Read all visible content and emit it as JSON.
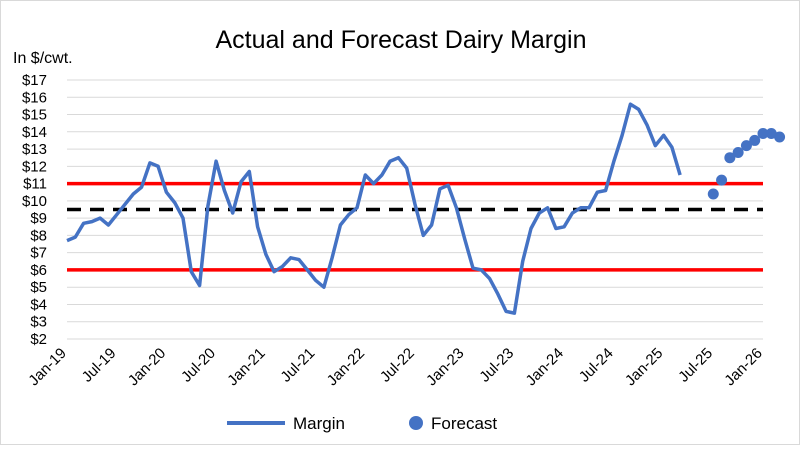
{
  "chart_data": {
    "type": "line",
    "title": "Actual and Forecast Dairy Margin",
    "ylabel": "In $/cwt.",
    "ylim": [
      2,
      17
    ],
    "y_ticks": [
      "$2",
      "$3",
      "$4",
      "$5",
      "$6",
      "$7",
      "$8",
      "$9",
      "$10",
      "$11",
      "$12",
      "$13",
      "$14",
      "$15",
      "$16",
      "$17"
    ],
    "x_ticks": [
      "Jan-19",
      "Jul-19",
      "Jan-20",
      "Jul-20",
      "Jan-21",
      "Jul-21",
      "Jan-22",
      "Jul-22",
      "Jan-23",
      "Jul-23",
      "Jan-24",
      "Jul-24",
      "Jan-25",
      "Jul-25",
      "Jan-26"
    ],
    "grid": "horizontal",
    "legend_position": "bottom",
    "reference_lines": [
      {
        "value": 11.0,
        "color": "#ff0000",
        "style": "solid"
      },
      {
        "value": 9.5,
        "color": "#000000",
        "style": "dashed"
      },
      {
        "value": 6.0,
        "color": "#ff0000",
        "style": "solid"
      }
    ],
    "series": [
      {
        "name": "Margin",
        "style": "line",
        "color": "#4472c4",
        "start": "Jan-19",
        "values": [
          7.7,
          7.9,
          8.7,
          8.8,
          9.0,
          8.6,
          9.2,
          9.8,
          10.4,
          10.8,
          12.2,
          12.0,
          10.5,
          9.9,
          9.0,
          5.9,
          5.1,
          9.7,
          12.3,
          10.6,
          9.3,
          11.1,
          11.7,
          8.5,
          6.9,
          5.9,
          6.2,
          6.7,
          6.6,
          6.0,
          5.4,
          5.0,
          6.7,
          8.6,
          9.2,
          9.6,
          11.5,
          11.0,
          11.5,
          12.3,
          12.5,
          11.9,
          9.8,
          8.0,
          8.6,
          10.7,
          10.9,
          9.6,
          7.8,
          6.1,
          6.0,
          5.5,
          4.6,
          3.6,
          3.5,
          6.5,
          8.4,
          9.3,
          9.6,
          8.4,
          8.5,
          9.3,
          9.6,
          9.6,
          10.5,
          10.6,
          12.3,
          13.8,
          15.6,
          15.3,
          14.4,
          13.2,
          13.8,
          13.1,
          11.5
        ]
      },
      {
        "name": "Forecast",
        "style": "marker",
        "color": "#4472c4",
        "start": "Jul-25",
        "values": [
          10.4,
          11.2,
          12.5,
          12.8,
          13.2,
          13.5,
          13.9,
          13.9,
          13.7
        ]
      }
    ]
  }
}
